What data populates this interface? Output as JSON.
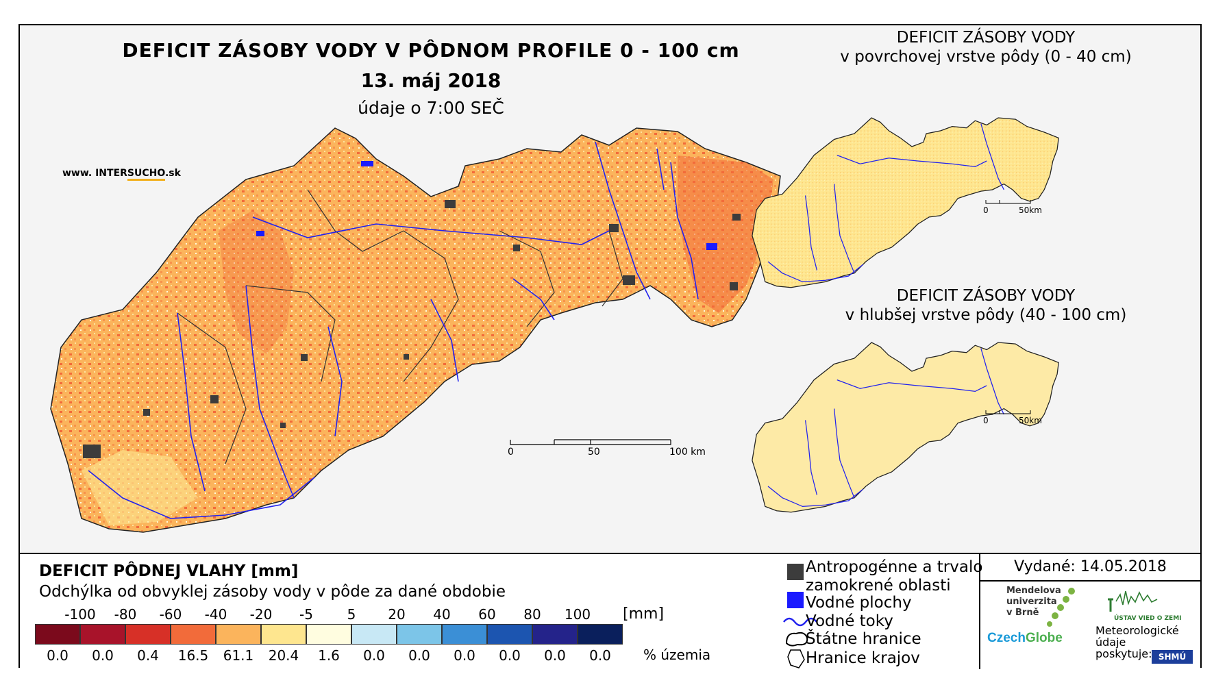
{
  "header": {
    "title": "DEFICIT ZÁSOBY VODY V PÔDNOM PROFILE 0 - 100 cm",
    "date": "13. máj 2018",
    "time": "údaje o 7:00 SEČ",
    "website_prefix": "www. INTER",
    "website_highlight": "SUCHO",
    "website_suffix": ".sk"
  },
  "main_scale": {
    "ticks": [
      "0",
      "50",
      "100 km"
    ]
  },
  "insets": [
    {
      "title_line1": "DEFICIT ZÁSOBY VODY",
      "title_line2": "v povrchovej vrstve pôdy (0 - 40 cm)",
      "scale_ticks": [
        "0",
        "50km"
      ]
    },
    {
      "title_line1": "DEFICIT ZÁSOBY VODY",
      "title_line2": "v hlubšej vrstve pôdy (40 - 100 cm)",
      "scale_ticks": [
        "0",
        "50km"
      ]
    }
  ],
  "legend": {
    "title": "DEFICIT PÔDNEJ VLAHY [mm]",
    "subtitle": "Odchýlka od obvyklej zásoby vody v pôde za dané obdobie",
    "unit": "[mm]",
    "pct_label": "% územia",
    "ticks": [
      "-100",
      "-80",
      "-60",
      "-40",
      "-20",
      "-5",
      "5",
      "20",
      "40",
      "60",
      "80",
      "100"
    ],
    "classes": [
      {
        "color": "#7b0a1c",
        "pct": "0.0"
      },
      {
        "color": "#a8132a",
        "pct": "0.0"
      },
      {
        "color": "#d73027",
        "pct": "0.4"
      },
      {
        "color": "#f26b3a",
        "pct": "16.5"
      },
      {
        "color": "#fbb45c",
        "pct": "61.1"
      },
      {
        "color": "#fee68f",
        "pct": "20.4"
      },
      {
        "color": "#fffde0",
        "pct": "1.6"
      },
      {
        "color": "#c8e8f5",
        "pct": "0.0"
      },
      {
        "color": "#7cc5e8",
        "pct": "0.0"
      },
      {
        "color": "#3b8fd6",
        "pct": "0.0"
      },
      {
        "color": "#1c55b0",
        "pct": "0.0"
      },
      {
        "color": "#24238a",
        "pct": "0.0"
      },
      {
        "color": "#0a1f5c",
        "pct": "0.0"
      }
    ]
  },
  "symbols": {
    "anthropogenic": "Antropogénne a trvalo",
    "anthropogenic2": "zamokrené oblasti",
    "water_areas": "Vodné plochy",
    "streams": "Vodné toky",
    "state_border": "Štátne hranice",
    "region_border": "Hranice krajov"
  },
  "issued": "Vydané: 14.05.2018",
  "logos": {
    "mendel": "Mendelova\nuniverzita\nv Brně",
    "czechglobe_a": "Czech",
    "czechglobe_b": "Globe",
    "ustav": "ÚSTAV VIED O ZEMI",
    "meteo": "Meteorologické\núdaje\nposkytuje:",
    "shmu": "SHMÚ"
  },
  "colors": {
    "map_base": "#fbb45c",
    "map_dark": "#f26b3a",
    "map_light": "#fee68f",
    "urban": "#3c3c3c",
    "water": "#1a1aff",
    "rivers": "#2222ee"
  }
}
